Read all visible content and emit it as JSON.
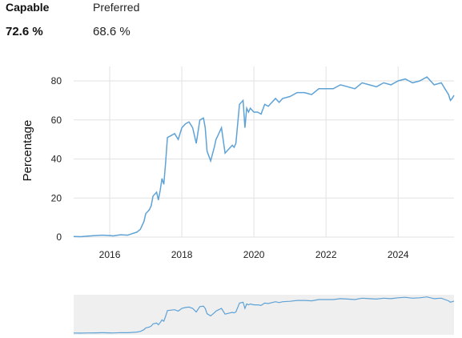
{
  "summary": {
    "capable": {
      "label": "Capable",
      "value": "72.6 %"
    },
    "preferred": {
      "label": "Preferred",
      "value": "68.6 %"
    }
  },
  "colors": {
    "line": "#5fa2d6",
    "grid": "#e2e2e2",
    "navigator_bg": "#efefef"
  },
  "chart_data": {
    "type": "line",
    "title": "",
    "xlabel": "",
    "ylabel": "Percentage",
    "xlim": [
      2015.0,
      2025.55
    ],
    "ylim": [
      0,
      85
    ],
    "xticks": [
      2016,
      2018,
      2020,
      2022,
      2024
    ],
    "yticks": [
      0,
      20,
      40,
      60,
      80
    ],
    "grid": "vertical and horizontal",
    "legend": "none",
    "series": [
      {
        "x": [
          2015.0,
          2015.2,
          2015.4,
          2015.6,
          2015.8,
          2016.0,
          2016.1,
          2016.3,
          2016.5,
          2016.6,
          2016.75,
          2016.85,
          2016.95,
          2017.0,
          2017.1,
          2017.15,
          2017.2,
          2017.3,
          2017.35,
          2017.4,
          2017.45,
          2017.5,
          2017.55,
          2017.6,
          2017.7,
          2017.8,
          2017.9,
          2018.0,
          2018.1,
          2018.2,
          2018.3,
          2018.4,
          2018.5,
          2018.6,
          2018.65,
          2018.7,
          2018.8,
          2018.9,
          2018.95,
          2019.0,
          2019.1,
          2019.2,
          2019.3,
          2019.4,
          2019.45,
          2019.5,
          2019.6,
          2019.7,
          2019.75,
          2019.8,
          2019.85,
          2019.9,
          2020.0,
          2020.1,
          2020.2,
          2020.3,
          2020.4,
          2020.5,
          2020.6,
          2020.7,
          2020.8,
          2021.0,
          2021.2,
          2021.4,
          2021.6,
          2021.8,
          2022.0,
          2022.2,
          2022.4,
          2022.6,
          2022.8,
          2023.0,
          2023.2,
          2023.4,
          2023.6,
          2023.8,
          2024.0,
          2024.2,
          2024.4,
          2024.6,
          2024.8,
          2025.0,
          2025.2,
          2025.3,
          2025.4,
          2025.45,
          2025.5,
          2025.55
        ],
        "values": [
          0.3,
          0.2,
          0.5,
          0.8,
          1.0,
          0.8,
          0.6,
          1.2,
          1.0,
          1.6,
          2.5,
          4.0,
          8.0,
          12.0,
          14.0,
          16.0,
          21.0,
          23.0,
          19.0,
          24.0,
          30.0,
          27.0,
          38.0,
          51.0,
          52.0,
          53.0,
          50.0,
          56.0,
          58.0,
          59.0,
          56.0,
          48.0,
          60.0,
          61.0,
          56.0,
          44.0,
          39.0,
          46.0,
          50.0,
          52.0,
          56.0,
          43.0,
          45.0,
          47.0,
          46.0,
          48.0,
          68.0,
          70.0,
          56.0,
          66.0,
          64.0,
          66.0,
          64.0,
          64.0,
          63.0,
          68.0,
          67.0,
          69.0,
          71.0,
          69.0,
          71.0,
          72.0,
          74.0,
          74.0,
          73.0,
          76.0,
          76.0,
          76.0,
          78.0,
          77.0,
          76.0,
          79.0,
          78.0,
          77.0,
          79.0,
          78.0,
          80.0,
          81.0,
          79.0,
          80.0,
          82.0,
          78.0,
          79.0,
          76.0,
          73.0,
          70.0,
          71.0,
          72.6
        ]
      }
    ]
  }
}
